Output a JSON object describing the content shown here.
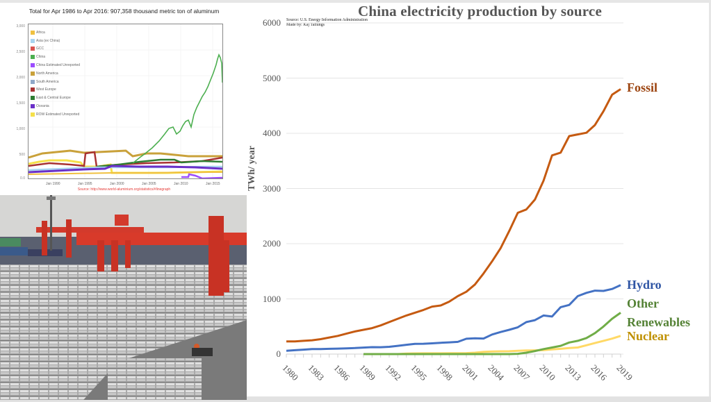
{
  "aluminum_chart": {
    "title": "Total for Apr 1986 to Apr 2016: 907,358  thousand metric ton of aluminum",
    "source": "Source: http://www.world-aluminium.org/statistics/#linegraph",
    "y_ticks": [
      "3,000",
      "2,500",
      "2,000",
      "1,500",
      "1,000",
      "500",
      "0.0"
    ],
    "x_ticks": [
      "Jan 1990",
      "Jan 1995",
      "Jan 2000",
      "Jan 2005",
      "Jan 2010",
      "Jan 2015"
    ],
    "legend": [
      {
        "label": "Africa",
        "color": "#f0c040"
      },
      {
        "label": "Asia (ex China)",
        "color": "#a8d4f0"
      },
      {
        "label": "GCC",
        "color": "#d9534f"
      },
      {
        "label": "China",
        "color": "#4caf50"
      },
      {
        "label": "China Estimated Unreported",
        "color": "#9c4dff"
      },
      {
        "label": "North America",
        "color": "#c9a13a"
      },
      {
        "label": "South America",
        "color": "#8fa8c8"
      },
      {
        "label": "West Europe",
        "color": "#a83232"
      },
      {
        "label": "East & Central Europe",
        "color": "#2e7d32"
      },
      {
        "label": "Oceania",
        "color": "#6a2fc8"
      },
      {
        "label": "ROW Estimated Unreported",
        "color": "#f5e04a"
      }
    ]
  },
  "photo": {
    "description": "Aluminum ingots stacked in yard with red gantry cranes"
  },
  "chart_data": {
    "type": "line",
    "title": "China electricity production by source",
    "subtitle": "Source: U.S. Energy Information Administration",
    "credit": "Made by: Kaj Tallungs",
    "xlabel": "",
    "ylabel": "TWh/ year",
    "ylim": [
      0,
      6000
    ],
    "xlim": [
      1980,
      2019
    ],
    "grid": true,
    "legend": "inline-right",
    "y_ticks": [
      "0",
      "1000",
      "2000",
      "3000",
      "4000",
      "5000",
      "6000"
    ],
    "x_ticks": [
      "1980",
      "1983",
      "1986",
      "1989",
      "1992",
      "1995",
      "1998",
      "2001",
      "2004",
      "2007",
      "2010",
      "2013",
      "2016",
      "2019"
    ],
    "x": [
      1980,
      1981,
      1982,
      1983,
      1984,
      1985,
      1986,
      1987,
      1988,
      1989,
      1990,
      1991,
      1992,
      1993,
      1994,
      1995,
      1996,
      1997,
      1998,
      1999,
      2000,
      2001,
      2002,
      2003,
      2004,
      2005,
      2006,
      2007,
      2008,
      2009,
      2010,
      2011,
      2012,
      2013,
      2014,
      2015,
      2016,
      2017,
      2018,
      2019
    ],
    "series": [
      {
        "name": "Fossil",
        "color": "#c55a11",
        "label_color": "#9c4410",
        "values": [
          230,
          230,
          240,
          250,
          270,
          300,
          330,
          370,
          410,
          440,
          470,
          520,
          580,
          640,
          700,
          750,
          800,
          860,
          880,
          950,
          1050,
          1130,
          1260,
          1460,
          1680,
          1920,
          2230,
          2560,
          2620,
          2800,
          3140,
          3600,
          3650,
          3950,
          3980,
          4010,
          4150,
          4400,
          4700,
          4800
        ]
      },
      {
        "name": "Hydro",
        "color": "#4472c4",
        "label_color": "#2f55a4",
        "values": [
          60,
          70,
          80,
          90,
          90,
          95,
          100,
          105,
          110,
          118,
          126,
          125,
          132,
          150,
          168,
          186,
          188,
          195,
          205,
          212,
          222,
          278,
          285,
          282,
          355,
          400,
          440,
          486,
          580,
          615,
          700,
          680,
          850,
          890,
          1050,
          1110,
          1150,
          1145,
          1180,
          1250
        ]
      },
      {
        "name": "Other Renewables",
        "color": "#70ad47",
        "label_color": "#548235",
        "values": [
          null,
          null,
          null,
          null,
          null,
          null,
          null,
          null,
          null,
          0,
          0,
          0,
          0,
          0,
          0,
          0,
          0,
          0,
          0,
          0,
          0,
          0,
          0,
          0,
          0,
          0,
          0,
          5,
          25,
          55,
          90,
          120,
          150,
          210,
          240,
          290,
          380,
          500,
          640,
          750
        ]
      },
      {
        "name": "Nuclear",
        "color": "#ffd966",
        "label_color": "#bf9000",
        "values": [
          null,
          null,
          null,
          null,
          null,
          null,
          null,
          null,
          null,
          null,
          null,
          null,
          null,
          0,
          10,
          12,
          14,
          14,
          14,
          15,
          16,
          17,
          25,
          42,
          48,
          50,
          52,
          60,
          66,
          68,
          72,
          85,
          95,
          110,
          120,
          160,
          200,
          240,
          280,
          330
        ]
      }
    ]
  },
  "series_labels": [
    {
      "text": "Fossil"
    },
    {
      "text": "Hydro"
    },
    {
      "text": "Other"
    },
    {
      "text": "Renewables"
    },
    {
      "text": "Nuclear"
    }
  ]
}
